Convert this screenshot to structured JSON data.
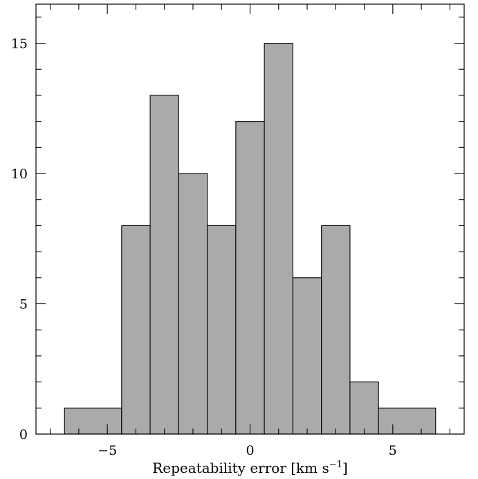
{
  "chart_data": {
    "type": "bar",
    "title": "",
    "xlabel": "Repeatability error [km s",
    "xlabel_sup": "−1",
    "xlabel_end": "]",
    "ylabel": "",
    "xlim": [
      -7.5,
      7.5
    ],
    "ylim": [
      0,
      16.5
    ],
    "bar_color": "#aaaaaa",
    "edge_color": "#000000",
    "bins": [
      {
        "x0": -6.5,
        "x1": -4.5,
        "count": 1
      },
      {
        "x0": -4.5,
        "x1": -3.5,
        "count": 8
      },
      {
        "x0": -3.5,
        "x1": -2.5,
        "count": 13
      },
      {
        "x0": -2.5,
        "x1": -1.5,
        "count": 10
      },
      {
        "x0": -1.5,
        "x1": -0.5,
        "count": 8
      },
      {
        "x0": -0.5,
        "x1": 0.5,
        "count": 12
      },
      {
        "x0": 0.5,
        "x1": 1.5,
        "count": 15
      },
      {
        "x0": 1.5,
        "x1": 2.5,
        "count": 6
      },
      {
        "x0": 2.5,
        "x1": 3.5,
        "count": 8
      },
      {
        "x0": 3.5,
        "x1": 4.5,
        "count": 2
      },
      {
        "x0": 4.5,
        "x1": 6.5,
        "count": 1
      }
    ],
    "x_major_ticks": [
      -5,
      0,
      5
    ],
    "x_major_labels": [
      "−5",
      "0",
      "5"
    ],
    "x_minor_step": 1,
    "y_major_ticks": [
      0,
      5,
      10,
      15
    ],
    "y_major_labels": [
      "0",
      "5",
      "10",
      "15"
    ],
    "y_minor_step": 1
  }
}
